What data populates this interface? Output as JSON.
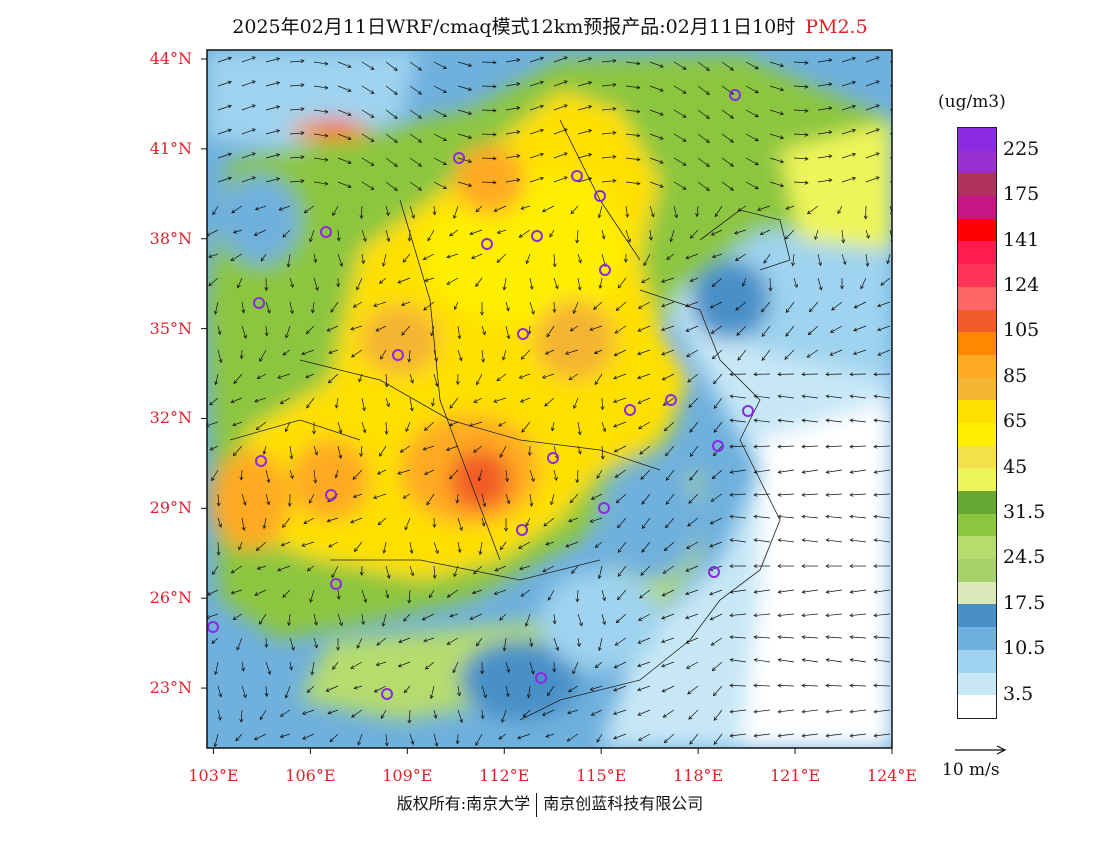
{
  "title": {
    "main": "2025年02月11日WRF/cmaq模式12km预报产品:02月11日10时",
    "variable": "PM2.5"
  },
  "map": {
    "lat_labels": [
      "44°N",
      "41°N",
      "38°N",
      "35°N",
      "32°N",
      "29°N",
      "26°N",
      "23°N"
    ],
    "lon_labels": [
      "103°E",
      "106°E",
      "109°E",
      "112°E",
      "115°E",
      "118°E",
      "121°E",
      "124°E"
    ],
    "lat_range": [
      21.0,
      44.3
    ],
    "lon_range": [
      102.8,
      124.0
    ],
    "station_color": "#8a2be2"
  },
  "legend": {
    "unit": "(ug/m3)",
    "colors": [
      "#8a2be2",
      "#9b30d0",
      "#b0305e",
      "#c71585",
      "#ff0000",
      "#ff1a50",
      "#ff3355",
      "#ff6666",
      "#f25a28",
      "#ff8800",
      "#ffaa22",
      "#f5b433",
      "#ffe000",
      "#ffee00",
      "#f4e04a",
      "#eef55a",
      "#66a832",
      "#8cc63f",
      "#b6dc6e",
      "#a6d16a",
      "#dbe9b8",
      "#4a90c8",
      "#6fb0dd",
      "#9fd3ef",
      "#c7e7f7",
      "#ffffff"
    ],
    "labels": [
      "225",
      "175",
      "141",
      "124",
      "105",
      "85",
      "65",
      "45",
      "31.5",
      "24.5",
      "17.5",
      "10.5",
      "3.5"
    ]
  },
  "wind_scale_label": "10  m/s",
  "footer": {
    "left": "版权所有:南京大学",
    "right": "南京创蓝科技有限公司"
  }
}
